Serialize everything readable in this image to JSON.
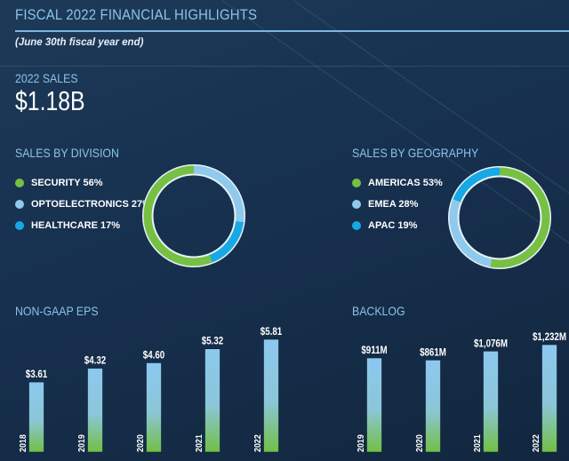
{
  "header": {
    "title": "FISCAL 2022 FINANCIAL HIGHLIGHTS",
    "subtitle": "(June 30th fiscal year end)"
  },
  "sales": {
    "label": "2022 SALES",
    "value": "$1.18B"
  },
  "colors": {
    "title": "#8cc3e8",
    "green": "#76c043",
    "light_blue": "#8fc9ec",
    "blue": "#17a8e6"
  },
  "chart_data": [
    {
      "type": "pie",
      "title": "SALES BY DIVISION",
      "donut": true,
      "slices": [
        {
          "label": "SECURITY 56%",
          "name": "SECURITY",
          "value": 56,
          "color": "#76c043"
        },
        {
          "label": "OPTOELECTRONICS 27%",
          "name": "OPTOELECTRONICS",
          "value": 27,
          "color": "#8fc9ec"
        },
        {
          "label": "HEALTHCARE 17%",
          "name": "HEALTHCARE",
          "value": 17,
          "color": "#17a8e6"
        }
      ]
    },
    {
      "type": "pie",
      "title": "SALES BY GEOGRAPHY",
      "donut": true,
      "slices": [
        {
          "label": "AMERICAS 53%",
          "name": "AMERICAS",
          "value": 53,
          "color": "#76c043"
        },
        {
          "label": "EMEA 28%",
          "name": "EMEA",
          "value": 28,
          "color": "#8fc9ec"
        },
        {
          "label": "APAC 19%",
          "name": "APAC",
          "value": 19,
          "color": "#17a8e6"
        }
      ]
    },
    {
      "type": "bar",
      "title": "NON-GAAP EPS",
      "categories": [
        "2018",
        "2019",
        "2020",
        "2021",
        "2022"
      ],
      "values": [
        3.61,
        4.32,
        4.6,
        5.32,
        5.81
      ],
      "data_labels": [
        "$3.61",
        "$4.32",
        "$4.60",
        "$5.32",
        "$5.81"
      ]
    },
    {
      "type": "bar",
      "title": "BACKLOG",
      "categories": [
        "2019",
        "2020",
        "2021",
        "2022"
      ],
      "values": [
        911,
        861,
        1076,
        1232
      ],
      "data_labels": [
        "$911M",
        "$861M",
        "$1,076M",
        "$1,232M"
      ]
    }
  ]
}
